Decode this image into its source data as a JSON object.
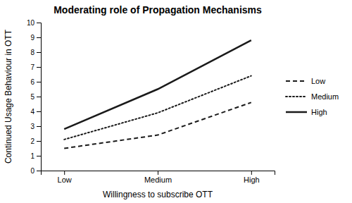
{
  "chart_data": {
    "type": "line",
    "title": "Moderating role of Propagation Mechanisms",
    "x_label": "Willingness to subscribe OTT",
    "y_label": "Continued Usage Behaviour in OTT",
    "categories": [
      "Low",
      "Medium",
      "High"
    ],
    "series": [
      {
        "name": "Low",
        "color": "#1a1a1a",
        "line_style": "dashed",
        "values": [
          1.5,
          2.4,
          4.6
        ]
      },
      {
        "name": "Medium",
        "color": "#1a1a1a",
        "line_style": "dotted",
        "values": [
          2.1,
          3.9,
          6.4
        ]
      },
      {
        "name": "High",
        "color": "#1a1a1a",
        "line_style": "solid",
        "values": [
          2.8,
          5.5,
          8.8
        ]
      }
    ],
    "ylim": [
      0,
      10
    ],
    "yticks": [
      0,
      1,
      2,
      3,
      4,
      5,
      6,
      7,
      8,
      9,
      10
    ],
    "grid": false,
    "legend": "right"
  }
}
